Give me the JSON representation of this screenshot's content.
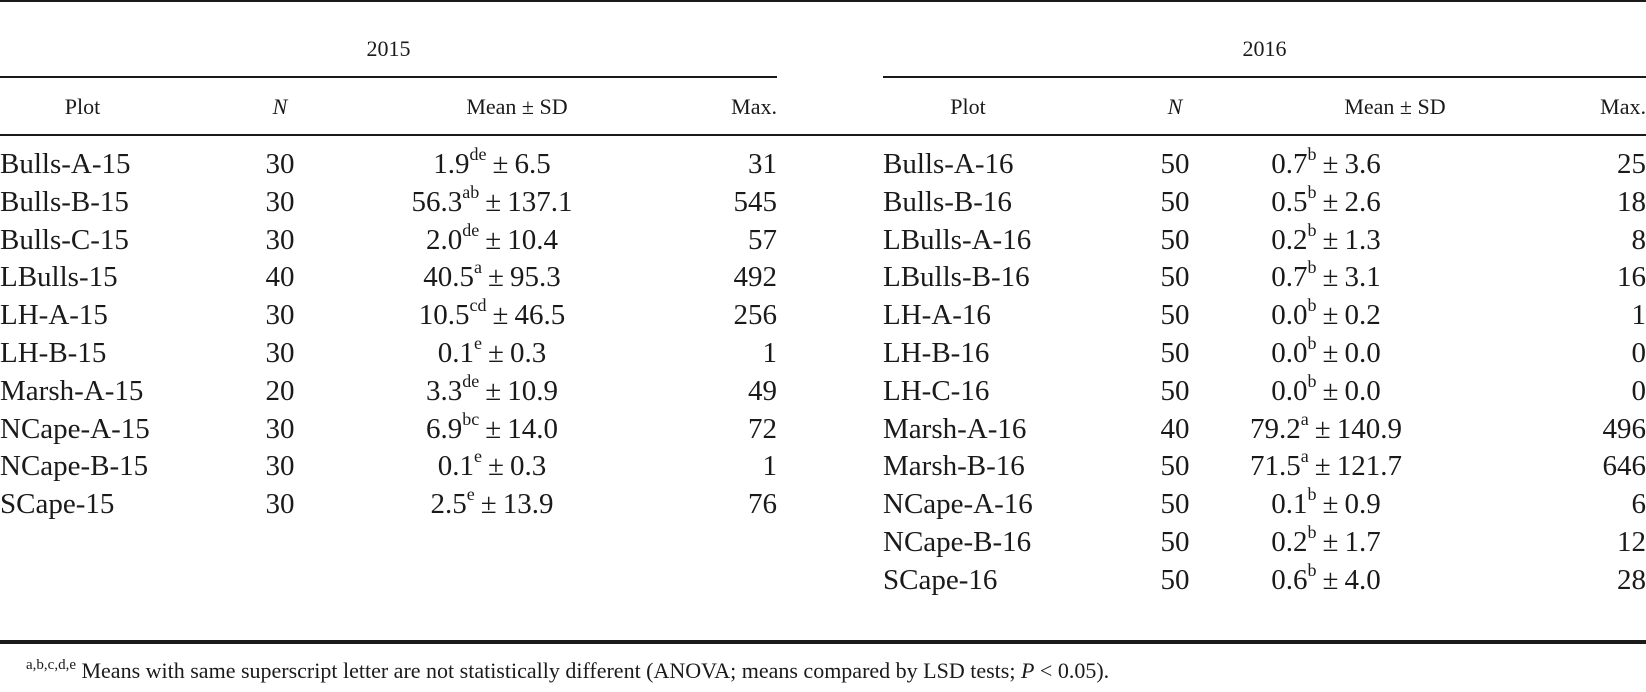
{
  "tables": [
    {
      "year": "2015",
      "headers": {
        "plot": "Plot",
        "n": "N",
        "mean_sd": "Mean ± SD",
        "max": "Max."
      },
      "rows": [
        {
          "plot": "Bulls-A-15",
          "n": "30",
          "mean": "1.9",
          "sup": "de",
          "sd": "6.5",
          "max": "31"
        },
        {
          "plot": "Bulls-B-15",
          "n": "30",
          "mean": "56.3",
          "sup": "ab",
          "sd": "137.1",
          "max": "545"
        },
        {
          "plot": "Bulls-C-15",
          "n": "30",
          "mean": "2.0",
          "sup": "de",
          "sd": "10.4",
          "max": "57"
        },
        {
          "plot": "LBulls-15",
          "n": "40",
          "mean": "40.5",
          "sup": "a",
          "sd": "95.3",
          "max": "492"
        },
        {
          "plot": "LH-A-15",
          "n": "30",
          "mean": "10.5",
          "sup": "cd",
          "sd": "46.5",
          "max": "256"
        },
        {
          "plot": "LH-B-15",
          "n": "30",
          "mean": "0.1",
          "sup": "e",
          "sd": "0.3",
          "max": "1"
        },
        {
          "plot": "Marsh-A-15",
          "n": "20",
          "mean": "3.3",
          "sup": "de",
          "sd": "10.9",
          "max": "49"
        },
        {
          "plot": "NCape-A-15",
          "n": "30",
          "mean": "6.9",
          "sup": "bc",
          "sd": "14.0",
          "max": "72"
        },
        {
          "plot": "NCape-B-15",
          "n": "30",
          "mean": "0.1",
          "sup": "e",
          "sd": "0.3",
          "max": "1"
        },
        {
          "plot": "SCape-15",
          "n": "30",
          "mean": "2.5",
          "sup": "e",
          "sd": "13.9",
          "max": "76"
        }
      ]
    },
    {
      "year": "2016",
      "headers": {
        "plot": "Plot",
        "n": "N",
        "mean_sd": "Mean ± SD",
        "max": "Max."
      },
      "rows": [
        {
          "plot": "Bulls-A-16",
          "n": "50",
          "mean": "0.7",
          "sup": "b",
          "sd": "3.6",
          "max": "25"
        },
        {
          "plot": "Bulls-B-16",
          "n": "50",
          "mean": "0.5",
          "sup": "b",
          "sd": "2.6",
          "max": "18"
        },
        {
          "plot": "LBulls-A-16",
          "n": "50",
          "mean": "0.2",
          "sup": "b",
          "sd": "1.3",
          "max": "8"
        },
        {
          "plot": "LBulls-B-16",
          "n": "50",
          "mean": "0.7",
          "sup": "b",
          "sd": "3.1",
          "max": "16"
        },
        {
          "plot": "LH-A-16",
          "n": "50",
          "mean": "0.0",
          "sup": "b",
          "sd": "0.2",
          "max": "1"
        },
        {
          "plot": "LH-B-16",
          "n": "50",
          "mean": "0.0",
          "sup": "b",
          "sd": "0.0",
          "max": "0"
        },
        {
          "plot": "LH-C-16",
          "n": "50",
          "mean": "0.0",
          "sup": "b",
          "sd": "0.0",
          "max": "0"
        },
        {
          "plot": "Marsh-A-16",
          "n": "40",
          "mean": "79.2",
          "sup": "a",
          "sd": "140.9",
          "max": "496"
        },
        {
          "plot": "Marsh-B-16",
          "n": "50",
          "mean": "71.5",
          "sup": "a",
          "sd": "121.7",
          "max": "646"
        },
        {
          "plot": "NCape-A-16",
          "n": "50",
          "mean": "0.1",
          "sup": "b",
          "sd": "0.9",
          "max": "6"
        },
        {
          "plot": "NCape-B-16",
          "n": "50",
          "mean": "0.2",
          "sup": "b",
          "sd": "1.7",
          "max": "12"
        },
        {
          "plot": "SCape-16",
          "n": "50",
          "mean": "0.6",
          "sup": "b",
          "sd": "4.0",
          "max": "28"
        }
      ]
    }
  ],
  "pm_symbol": "±",
  "footnote": {
    "marker": "a,b,c,d,e",
    "text_before": " Means with same superscript letter are not statistically different (ANOVA; means compared by LSD tests; ",
    "p_label": "P",
    "text_after": " < 0.05)."
  }
}
